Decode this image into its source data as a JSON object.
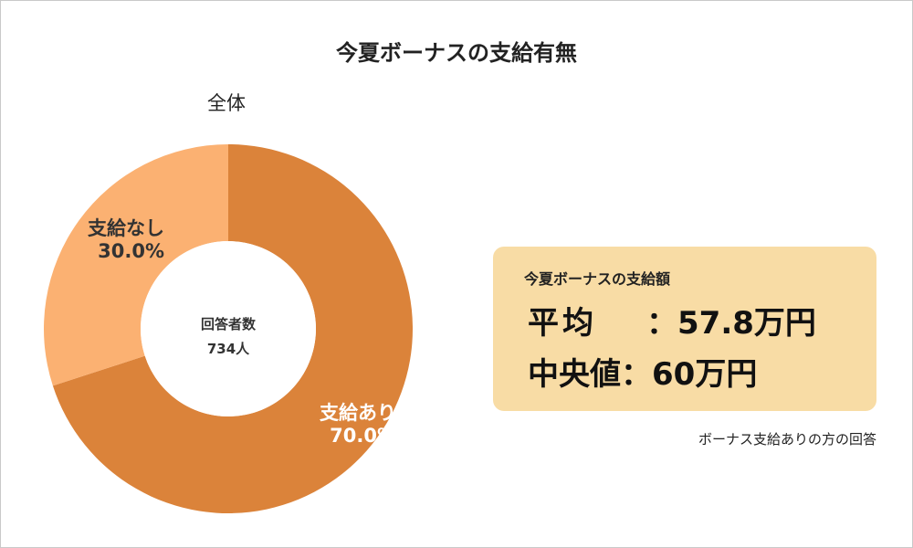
{
  "title": "今夏ボーナスの支給有無",
  "chart_data": {
    "type": "pie",
    "title": "今夏ボーナスの支給有無",
    "subtitle": "全体",
    "center": {
      "label": "回答者数",
      "value": "734人"
    },
    "slices": [
      {
        "name": "支給あり",
        "value": 70.0,
        "label": "70.0%",
        "color": "#db833a"
      },
      {
        "name": "支給なし",
        "value": 30.0,
        "label": "30.0%",
        "color": "#fbb172"
      }
    ]
  },
  "summary": {
    "heading": "今夏ボーナスの支給額",
    "average": {
      "label": "平均",
      "value": "：57.8万円"
    },
    "median": {
      "label": "中央値",
      "value": "：60万円"
    },
    "note": "ボーナス支給ありの方の回答"
  }
}
